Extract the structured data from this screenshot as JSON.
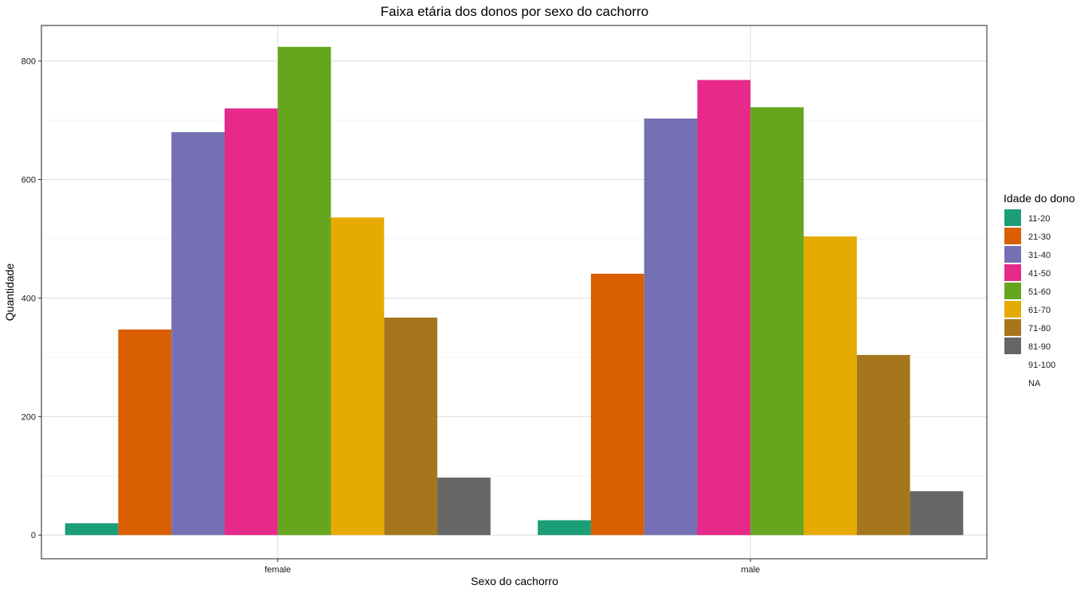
{
  "chart_data": {
    "type": "bar",
    "title": "Faixa etária dos donos por sexo do cachorro",
    "xlabel": "Sexo do cachorro",
    "ylabel": "Quantidade",
    "categories": [
      "female",
      "male"
    ],
    "yticks": [
      "0",
      "200",
      "400",
      "600",
      "800"
    ],
    "ylim": [
      -40,
      860
    ],
    "grid": true,
    "legend": {
      "title": "Idade do dono",
      "position": "right"
    },
    "series": [
      {
        "name": "11-20",
        "color": "#1B9E77",
        "values": [
          20,
          25
        ]
      },
      {
        "name": "21-30",
        "color": "#D95F02",
        "values": [
          347,
          441
        ]
      },
      {
        "name": "31-40",
        "color": "#7570B3",
        "values": [
          680,
          703
        ]
      },
      {
        "name": "41-50",
        "color": "#E7298A",
        "values": [
          720,
          768
        ]
      },
      {
        "name": "51-60",
        "color": "#66A61E",
        "values": [
          824,
          722
        ]
      },
      {
        "name": "61-70",
        "color": "#E6AB02",
        "values": [
          536,
          504
        ]
      },
      {
        "name": "71-80",
        "color": "#A6761D",
        "values": [
          367,
          304
        ]
      },
      {
        "name": "81-90",
        "color": "#666666",
        "values": [
          97,
          74
        ]
      },
      {
        "name": "91-100",
        "color": "#FFFFFF",
        "values": [
          0,
          0
        ]
      },
      {
        "name": "NA",
        "color": "#FFFFFF",
        "values": [
          0,
          0
        ]
      }
    ]
  }
}
